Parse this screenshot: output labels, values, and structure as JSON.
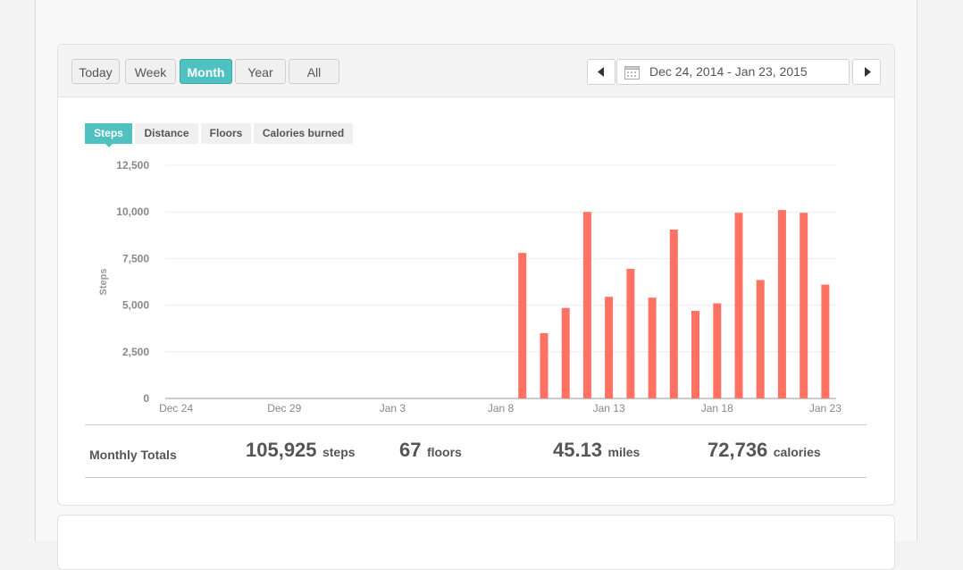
{
  "period_buttons": [
    {
      "label": "Today",
      "active": false
    },
    {
      "label": "Week",
      "active": false
    },
    {
      "label": "Month",
      "active": true
    },
    {
      "label": "Year",
      "active": false
    },
    {
      "label": "All",
      "active": false
    }
  ],
  "date_range": {
    "label": "Dec 24, 2014 - Jan 23, 2015",
    "prev_icon": "chevron-left-icon",
    "next_icon": "chevron-right-icon",
    "calendar_icon": "calendar-icon"
  },
  "metric_tabs": [
    {
      "label": "Steps",
      "active": true
    },
    {
      "label": "Distance",
      "active": false
    },
    {
      "label": "Floors",
      "active": false
    },
    {
      "label": "Calories burned",
      "active": false
    }
  ],
  "colors": {
    "accent": "#4fc1c1",
    "bar": "#fd7263"
  },
  "chart_data": {
    "type": "bar",
    "ylabel": "Steps",
    "ylim": [
      0,
      12500
    ],
    "y_ticks": [
      "0",
      "2,500",
      "5,000",
      "7,500",
      "10,000",
      "12,500"
    ],
    "categories": [
      "Dec 24",
      "Dec 25",
      "Dec 26",
      "Dec 27",
      "Dec 28",
      "Dec 29",
      "Dec 30",
      "Dec 31",
      "Jan 1",
      "Jan 2",
      "Jan 3",
      "Jan 4",
      "Jan 5",
      "Jan 6",
      "Jan 7",
      "Jan 8",
      "Jan 9",
      "Jan 10",
      "Jan 11",
      "Jan 12",
      "Jan 13",
      "Jan 14",
      "Jan 15",
      "Jan 16",
      "Jan 17",
      "Jan 18",
      "Jan 19",
      "Jan 20",
      "Jan 21",
      "Jan 22",
      "Jan 23"
    ],
    "x_tick_labels": [
      "Dec 24",
      "Dec 29",
      "Jan 3",
      "Jan 8",
      "Jan 13",
      "Jan 18",
      "Jan 23"
    ],
    "values": [
      0,
      0,
      0,
      0,
      0,
      0,
      0,
      0,
      0,
      0,
      0,
      0,
      0,
      0,
      0,
      0,
      7800,
      3500,
      4850,
      10000,
      5450,
      6950,
      5400,
      9050,
      4700,
      5100,
      9950,
      6350,
      10100,
      9950,
      6100
    ],
    "grid": true
  },
  "totals": {
    "label": "Monthly Totals",
    "items": [
      {
        "value": "105,925",
        "unit": "steps"
      },
      {
        "value": "67",
        "unit": "floors"
      },
      {
        "value": "45.13",
        "unit": "miles"
      },
      {
        "value": "72,736",
        "unit": "calories"
      }
    ]
  }
}
